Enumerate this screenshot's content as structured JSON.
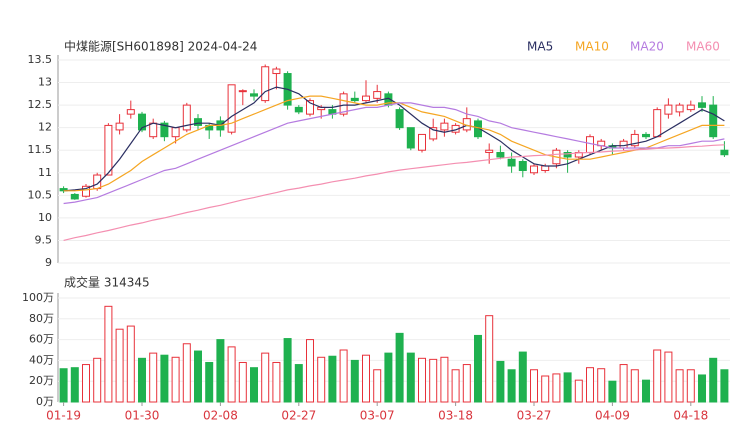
{
  "chart_data": [
    {
      "type": "candlestick",
      "title": "中煤能源[SH601898] 2024-04-24",
      "up_color": "#e8313a",
      "down_color": "#1fb14f",
      "open": [
        10.65,
        10.52,
        10.48,
        10.65,
        10.95,
        11.95,
        12.3,
        12.3,
        11.8,
        12.1,
        11.8,
        11.95,
        12.2,
        12.05,
        12.15,
        11.9,
        12.8,
        12.75,
        12.6,
        13.2,
        13.2,
        12.45,
        12.3,
        12.4,
        12.4,
        12.3,
        12.65,
        12.6,
        12.65,
        12.75,
        12.4,
        12.0,
        11.5,
        11.75,
        11.95,
        11.9,
        11.95,
        12.15,
        11.45,
        11.45,
        11.3,
        11.25,
        11.0,
        11.05,
        11.2,
        11.45,
        11.35,
        11.45,
        11.6,
        11.6,
        11.55,
        11.6,
        11.85,
        11.8,
        12.3,
        12.35,
        12.4,
        12.55,
        12.5,
        11.5
      ],
      "high": [
        10.7,
        10.55,
        10.75,
        11.0,
        12.1,
        12.3,
        12.6,
        12.35,
        12.2,
        12.15,
        12.0,
        12.55,
        12.3,
        12.1,
        12.25,
        12.95,
        12.85,
        12.85,
        13.4,
        13.35,
        13.25,
        12.5,
        12.65,
        12.5,
        12.5,
        12.8,
        12.8,
        13.05,
        12.95,
        12.8,
        12.45,
        12.0,
        11.85,
        12.2,
        12.2,
        12.1,
        12.45,
        12.2,
        11.65,
        11.6,
        11.45,
        11.3,
        11.2,
        11.2,
        11.55,
        11.5,
        11.5,
        11.85,
        11.75,
        11.65,
        11.75,
        11.95,
        11.9,
        12.45,
        12.65,
        12.55,
        12.6,
        12.7,
        12.7,
        11.7
      ],
      "low": [
        10.55,
        10.4,
        10.45,
        10.6,
        10.95,
        11.85,
        12.2,
        11.9,
        11.75,
        11.7,
        11.65,
        11.9,
        11.95,
        11.75,
        11.8,
        11.85,
        12.5,
        12.6,
        12.55,
        12.85,
        12.4,
        12.3,
        12.25,
        12.2,
        12.2,
        12.25,
        12.55,
        12.55,
        12.55,
        12.45,
        11.95,
        11.5,
        11.45,
        11.7,
        11.8,
        11.85,
        11.9,
        11.75,
        11.2,
        11.3,
        11.0,
        10.9,
        10.95,
        11.0,
        11.1,
        11.0,
        11.2,
        11.4,
        11.5,
        11.4,
        11.5,
        11.55,
        11.75,
        11.8,
        12.2,
        12.25,
        12.35,
        12.35,
        11.75,
        11.35
      ],
      "close": [
        10.6,
        10.42,
        10.7,
        10.95,
        12.05,
        12.1,
        12.4,
        11.95,
        12.1,
        11.8,
        12.0,
        12.5,
        12.05,
        11.95,
        11.95,
        12.95,
        12.82,
        12.7,
        13.35,
        13.3,
        12.5,
        12.35,
        12.6,
        12.45,
        12.3,
        12.75,
        12.6,
        12.7,
        12.8,
        12.5,
        12.0,
        11.55,
        11.85,
        12.0,
        12.1,
        12.05,
        12.2,
        11.8,
        11.5,
        11.35,
        11.15,
        11.05,
        11.15,
        11.15,
        11.5,
        11.35,
        11.45,
        11.8,
        11.7,
        11.55,
        11.7,
        11.85,
        11.8,
        12.4,
        12.5,
        12.5,
        12.5,
        12.45,
        11.8,
        11.4
      ],
      "series": [
        {
          "name": "MA5",
          "color": "#2b2f62",
          "values": [
            10.6,
            10.62,
            10.65,
            10.75,
            11.0,
            11.3,
            11.65,
            12.0,
            12.1,
            12.05,
            12.0,
            12.05,
            12.1,
            12.1,
            12.05,
            12.25,
            12.4,
            12.55,
            12.8,
            12.9,
            12.85,
            12.75,
            12.55,
            12.45,
            12.45,
            12.5,
            12.5,
            12.55,
            12.6,
            12.65,
            12.5,
            12.3,
            12.1,
            11.95,
            11.9,
            11.95,
            12.05,
            12.0,
            11.85,
            11.7,
            11.5,
            11.35,
            11.2,
            11.15,
            11.15,
            11.2,
            11.3,
            11.4,
            11.5,
            11.6,
            11.6,
            11.65,
            11.7,
            11.8,
            11.95,
            12.1,
            12.25,
            12.4,
            12.3,
            12.15
          ]
        },
        {
          "name": "MA10",
          "color": "#f5a623",
          "values": [
            10.6,
            10.6,
            10.62,
            10.65,
            10.75,
            10.9,
            11.05,
            11.25,
            11.4,
            11.55,
            11.7,
            11.85,
            11.95,
            12.05,
            12.05,
            12.1,
            12.2,
            12.3,
            12.4,
            12.5,
            12.6,
            12.65,
            12.7,
            12.7,
            12.65,
            12.6,
            12.55,
            12.5,
            12.5,
            12.55,
            12.55,
            12.45,
            12.35,
            12.3,
            12.25,
            12.15,
            12.05,
            12.0,
            11.95,
            11.85,
            11.7,
            11.6,
            11.5,
            11.4,
            11.35,
            11.3,
            11.3,
            11.3,
            11.35,
            11.4,
            11.45,
            11.5,
            11.55,
            11.65,
            11.75,
            11.85,
            11.95,
            12.05,
            12.05,
            12.05
          ]
        },
        {
          "name": "MA20",
          "color": "#b57be0",
          "values": [
            10.32,
            10.35,
            10.4,
            10.45,
            10.55,
            10.65,
            10.75,
            10.85,
            10.95,
            11.05,
            11.1,
            11.2,
            11.3,
            11.4,
            11.5,
            11.6,
            11.7,
            11.8,
            11.9,
            12.0,
            12.1,
            12.15,
            12.2,
            12.25,
            12.3,
            12.35,
            12.4,
            12.45,
            12.45,
            12.5,
            12.55,
            12.55,
            12.5,
            12.45,
            12.45,
            12.4,
            12.3,
            12.25,
            12.15,
            12.1,
            12.0,
            11.95,
            11.9,
            11.85,
            11.8,
            11.75,
            11.7,
            11.65,
            11.6,
            11.55,
            11.55,
            11.55,
            11.55,
            11.55,
            11.6,
            11.6,
            11.65,
            11.7,
            11.7,
            11.75
          ]
        },
        {
          "name": "MA60",
          "color": "#f48fb1",
          "values": [
            9.5,
            9.56,
            9.61,
            9.67,
            9.72,
            9.78,
            9.84,
            9.89,
            9.95,
            10.0,
            10.06,
            10.12,
            10.17,
            10.23,
            10.28,
            10.34,
            10.4,
            10.45,
            10.51,
            10.56,
            10.62,
            10.66,
            10.71,
            10.75,
            10.8,
            10.84,
            10.88,
            10.93,
            10.97,
            11.02,
            11.06,
            11.09,
            11.12,
            11.15,
            11.18,
            11.21,
            11.23,
            11.26,
            11.29,
            11.32,
            11.35,
            11.36,
            11.38,
            11.39,
            11.41,
            11.42,
            11.44,
            11.45,
            11.46,
            11.48,
            11.49,
            11.51,
            11.52,
            11.54,
            11.55,
            11.56,
            11.58,
            11.59,
            11.61,
            11.62
          ]
        }
      ],
      "ylim": [
        9,
        13.5
      ],
      "yticks": [
        9,
        9.5,
        10,
        10.5,
        11,
        11.5,
        12,
        12.5,
        13,
        13.5
      ],
      "grid": true
    },
    {
      "type": "bar",
      "title": "成交量 314345",
      "categories": [
        "01-19",
        null,
        null,
        null,
        null,
        null,
        null,
        "01-30",
        null,
        null,
        null,
        null,
        null,
        null,
        "02-08",
        null,
        null,
        null,
        null,
        null,
        null,
        "02-27",
        null,
        null,
        null,
        null,
        null,
        null,
        "03-07",
        null,
        null,
        null,
        null,
        null,
        null,
        "03-18",
        null,
        null,
        null,
        null,
        null,
        null,
        "03-27",
        null,
        null,
        null,
        null,
        null,
        null,
        "04-09",
        null,
        null,
        null,
        null,
        null,
        null,
        "04-18",
        null,
        null,
        null
      ],
      "values": [
        32,
        33,
        36,
        42,
        92,
        70,
        73,
        42,
        47,
        45,
        43,
        56,
        49,
        38,
        60,
        53,
        38,
        33,
        47,
        38,
        61,
        36,
        60,
        43,
        44,
        50,
        40,
        45,
        31,
        47,
        66,
        47,
        42,
        41,
        43,
        31,
        36,
        64,
        83,
        39,
        31,
        48,
        31,
        25,
        27,
        28,
        21,
        33,
        32,
        20,
        36,
        31,
        21,
        50,
        48,
        31,
        31,
        26,
        42,
        31
      ],
      "ylim": [
        0,
        100
      ],
      "yticks": [
        {
          "value": 0,
          "label": "0万"
        },
        {
          "value": 20,
          "label": "20万"
        },
        {
          "value": 40,
          "label": "40万"
        },
        {
          "value": 60,
          "label": "60万"
        },
        {
          "value": 80,
          "label": "80万"
        },
        {
          "value": 100,
          "label": "100万"
        }
      ],
      "grid": true
    }
  ]
}
